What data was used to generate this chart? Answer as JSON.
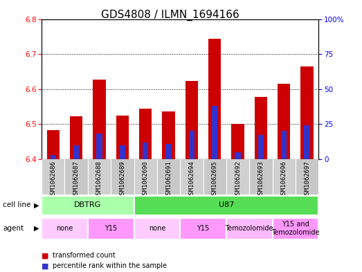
{
  "title": "GDS4808 / ILMN_1694166",
  "samples": [
    "GSM1062686",
    "GSM1062687",
    "GSM1062688",
    "GSM1062689",
    "GSM1062690",
    "GSM1062691",
    "GSM1062694",
    "GSM1062695",
    "GSM1062692",
    "GSM1062693",
    "GSM1062696",
    "GSM1062697"
  ],
  "transformed_count": [
    6.483,
    6.523,
    6.627,
    6.524,
    6.545,
    6.537,
    6.624,
    6.743,
    6.5,
    6.578,
    6.616,
    6.664
  ],
  "percentile_rank": [
    3,
    10,
    18,
    10,
    12,
    11,
    20,
    38,
    5,
    17,
    20,
    24
  ],
  "y_min": 6.4,
  "y_max": 6.8,
  "yticks_left": [
    6.4,
    6.5,
    6.6,
    6.7,
    6.8
  ],
  "yticks_right": [
    0,
    25,
    50,
    75,
    100
  ],
  "bar_color": "#cc0000",
  "blue_color": "#3333cc",
  "bar_width": 0.55,
  "blue_bar_width": 0.25,
  "cell_line_groups": [
    {
      "label": "DBTRG",
      "start": 0,
      "end": 3,
      "color": "#aaffaa"
    },
    {
      "label": "U87",
      "start": 4,
      "end": 11,
      "color": "#55dd55"
    }
  ],
  "agent_groups": [
    {
      "label": "none",
      "start": 0,
      "end": 1,
      "color": "#ffccff"
    },
    {
      "label": "Y15",
      "start": 2,
      "end": 3,
      "color": "#ff99ff"
    },
    {
      "label": "none",
      "start": 4,
      "end": 5,
      "color": "#ffccff"
    },
    {
      "label": "Y15",
      "start": 6,
      "end": 7,
      "color": "#ff99ff"
    },
    {
      "label": "Temozolomide",
      "start": 8,
      "end": 9,
      "color": "#ffbbff"
    },
    {
      "label": "Y15 and\nTemozolomide",
      "start": 10,
      "end": 11,
      "color": "#ff99ff"
    }
  ],
  "legend_red": "transformed count",
  "legend_blue": "percentile rank within the sample",
  "title_fontsize": 11,
  "tick_fontsize": 7.5,
  "label_fontsize": 7.5,
  "sample_fontsize": 6.5,
  "group_fontsize": 8,
  "agent_fontsize": 7
}
